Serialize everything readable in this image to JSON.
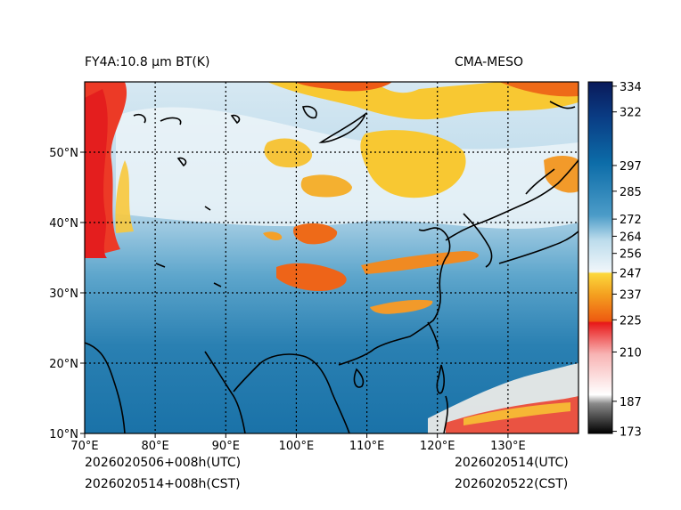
{
  "header": {
    "title_left": "FY4A:10.8 µm BT(K)",
    "title_right": "CMA-MESO"
  },
  "footer": {
    "init_utc": "2026020506+008h(UTC)",
    "init_cst": "2026020514+008h(CST)",
    "valid_utc": "2026020514(UTC)",
    "valid_cst": "2026020522(CST)"
  },
  "map": {
    "lon_labels": [
      "70°E",
      "80°E",
      "90°E",
      "100°E",
      "110°E",
      "120°E",
      "130°E"
    ],
    "lat_labels": [
      "10°N",
      "20°N",
      "30°N",
      "40°N",
      "50°N"
    ]
  },
  "colorbar": {
    "ticks": [
      "173",
      "187",
      "210",
      "225",
      "237",
      "247",
      "256",
      "264",
      "272",
      "285",
      "297",
      "322",
      "334"
    ],
    "tick_values": [
      173,
      187,
      210,
      225,
      237,
      247,
      256,
      264,
      272,
      285,
      297,
      322,
      334
    ],
    "range": [
      172,
      336
    ]
  },
  "colors": {
    "ocean_warm": "#1a72a8",
    "mid_blue": "#4d9cc4",
    "light_blue": "#a8d0e4",
    "pale": "#e4f0f6",
    "yellow": "#f8c832",
    "orange": "#ee6a18",
    "red": "#e83228",
    "navy": "#0c1c5c"
  }
}
